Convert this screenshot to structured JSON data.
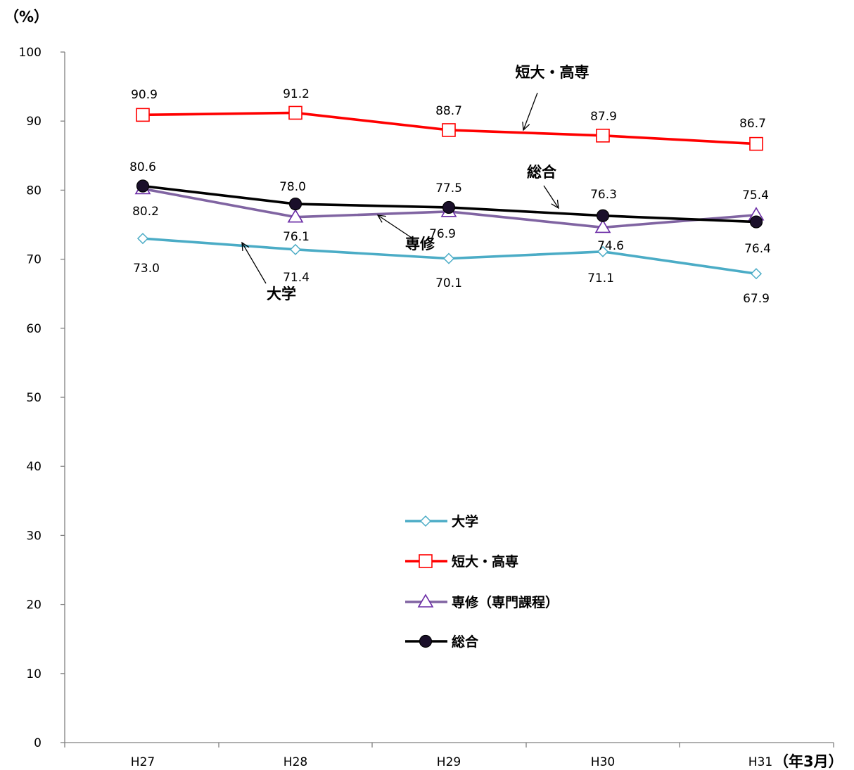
{
  "chart_data": {
    "type": "line",
    "y_unit_label": "（%）",
    "x_unit_label": "（年3月）",
    "categories": [
      "H27",
      "H28",
      "H29",
      "H30",
      "H31"
    ],
    "ylim": [
      0,
      100
    ],
    "yticks": [
      0,
      10,
      20,
      30,
      40,
      50,
      60,
      70,
      80,
      90,
      100
    ],
    "grid": false,
    "legend_position": "center-bottom",
    "series": [
      {
        "name": "大学",
        "inline_label": "大学",
        "values": [
          73.0,
          71.4,
          70.1,
          71.1,
          67.9
        ],
        "labels": [
          "73.0",
          "71.4",
          "70.1",
          "71.1",
          "67.9"
        ],
        "color": "#4BACC6",
        "marker": "diamond"
      },
      {
        "name": "短大・高専",
        "inline_label": "短大・高専",
        "values": [
          90.9,
          91.2,
          88.7,
          87.9,
          86.7
        ],
        "labels": [
          "90.9",
          "91.2",
          "88.7",
          "87.9",
          "86.7"
        ],
        "color": "#FF0000",
        "marker": "square"
      },
      {
        "name": "専修（専門課程）",
        "inline_label": "専修",
        "values": [
          80.2,
          76.1,
          76.9,
          74.6,
          76.4
        ],
        "labels": [
          "80.2",
          "76.1",
          "76.9",
          "74.6",
          "76.4"
        ],
        "color": "#8064A2",
        "marker": "triangle"
      },
      {
        "name": "総合",
        "inline_label": "総合",
        "values": [
          80.6,
          78.0,
          77.5,
          76.3,
          75.4
        ],
        "labels": [
          "80.6",
          "78.0",
          "77.5",
          "76.3",
          "75.4"
        ],
        "color": "#000000",
        "marker": "circle"
      }
    ]
  }
}
